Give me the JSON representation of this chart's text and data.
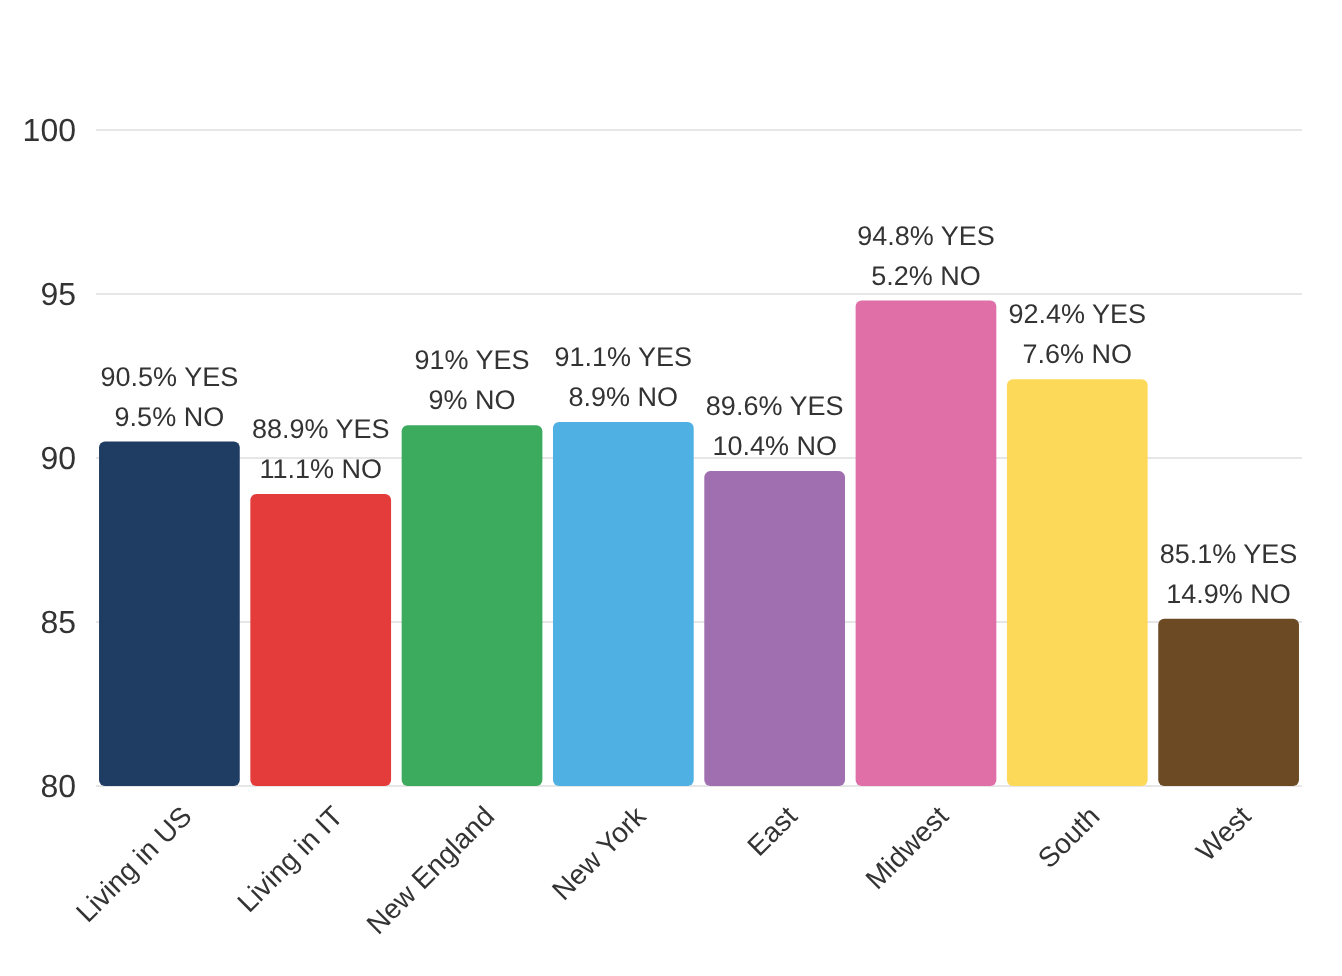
{
  "chart_data": {
    "type": "bar",
    "categories": [
      "Living in US",
      "Living in IT",
      "New England",
      "New York",
      "East",
      "Midwest",
      "South",
      "West"
    ],
    "values": [
      90.5,
      88.9,
      91,
      91.1,
      89.6,
      94.8,
      92.4,
      85.1
    ],
    "value_labels": [
      "90.5% YES\n9.5% NO",
      "88.9% YES\n11.1% NO",
      "91% YES\n9% NO",
      "91.1% YES\n8.9% NO",
      "89.6% YES\n10.4% NO",
      "94.8% YES\n5.2% NO",
      "92.4% YES\n7.6% NO",
      "85.1% YES\n14.9% NO"
    ],
    "colors": [
      "#1f3d63",
      "#e43b3b",
      "#3dab5e",
      "#4fb0e3",
      "#a06fb0",
      "#e06fa8",
      "#fdd95a",
      "#6b4a24"
    ],
    "ylim": [
      80,
      100
    ],
    "yticks": [
      80,
      85,
      90,
      95,
      100
    ],
    "grid": "y"
  }
}
